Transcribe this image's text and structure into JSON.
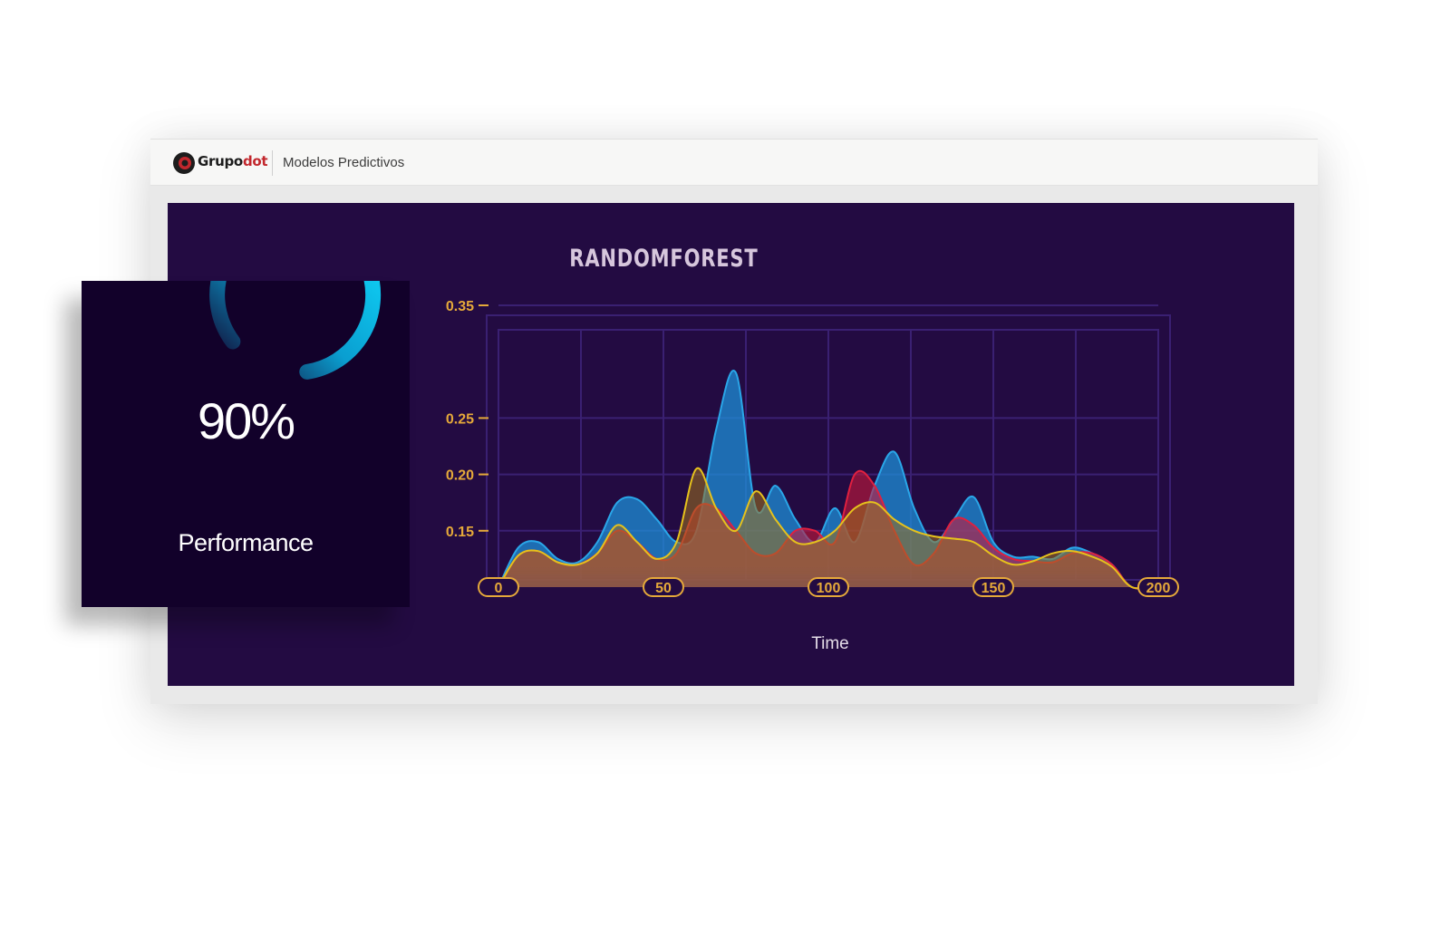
{
  "header": {
    "brand_main": "Grupo",
    "brand_accent": "dot",
    "app_title": "Modelos Predictivos"
  },
  "performance": {
    "value_text": "90%",
    "value": 0.9,
    "label": "Performance"
  },
  "colors": {
    "panel_bg": "#230b42",
    "card_bg": "#12012a",
    "grid": "#3a2072",
    "axis_text": "#e5a93a",
    "series_blue": "#1e8fd8",
    "series_red": "#c8193a",
    "series_yellow": "#d8b21a",
    "gauge": "#16c8f0"
  },
  "chart_data": {
    "type": "area",
    "title": "RANDOMFOREST",
    "xlabel": "Time",
    "ylabel": "",
    "xlim": [
      0,
      200
    ],
    "x_ticks": [
      0,
      50,
      100,
      150,
      200
    ],
    "y_ticks": [
      {
        "value": 0.15,
        "label": "0.15"
      },
      {
        "value": 0.2,
        "label": "0.20"
      },
      {
        "value": 0.25,
        "label": "0.25"
      },
      {
        "value": 0.35,
        "label": "0.35"
      }
    ],
    "grid": true,
    "legend": "none",
    "x": [
      0,
      6,
      12,
      18,
      24,
      30,
      36,
      42,
      48,
      54,
      60,
      66,
      72,
      78,
      84,
      90,
      96,
      102,
      108,
      114,
      120,
      126,
      132,
      138,
      144,
      150,
      156,
      162,
      168,
      174,
      180,
      186,
      192,
      200
    ],
    "series": [
      {
        "color": "#1e8fd8",
        "values": [
          0.1,
          0.135,
          0.14,
          0.125,
          0.122,
          0.14,
          0.175,
          0.178,
          0.16,
          0.14,
          0.15,
          0.24,
          0.29,
          0.17,
          0.19,
          0.16,
          0.14,
          0.17,
          0.14,
          0.19,
          0.22,
          0.17,
          0.14,
          0.16,
          0.18,
          0.14,
          0.127,
          0.127,
          0.125,
          0.135,
          0.13,
          0.12,
          0.1,
          0.1
        ]
      },
      {
        "color": "#c8193a",
        "values": [
          0.1,
          0.128,
          0.132,
          0.122,
          0.12,
          0.13,
          0.15,
          0.14,
          0.125,
          0.13,
          0.17,
          0.17,
          0.15,
          0.13,
          0.13,
          0.15,
          0.15,
          0.14,
          0.2,
          0.19,
          0.15,
          0.12,
          0.13,
          0.16,
          0.155,
          0.135,
          0.125,
          0.123,
          0.122,
          0.13,
          0.13,
          0.12,
          0.1,
          0.1
        ]
      },
      {
        "color": "#d8b21a",
        "values": [
          0.1,
          0.128,
          0.132,
          0.122,
          0.12,
          0.13,
          0.155,
          0.14,
          0.125,
          0.14,
          0.205,
          0.17,
          0.15,
          0.185,
          0.16,
          0.14,
          0.14,
          0.15,
          0.17,
          0.175,
          0.16,
          0.15,
          0.145,
          0.143,
          0.14,
          0.128,
          0.12,
          0.123,
          0.13,
          0.132,
          0.127,
          0.118,
          0.1,
          0.1
        ]
      }
    ]
  }
}
